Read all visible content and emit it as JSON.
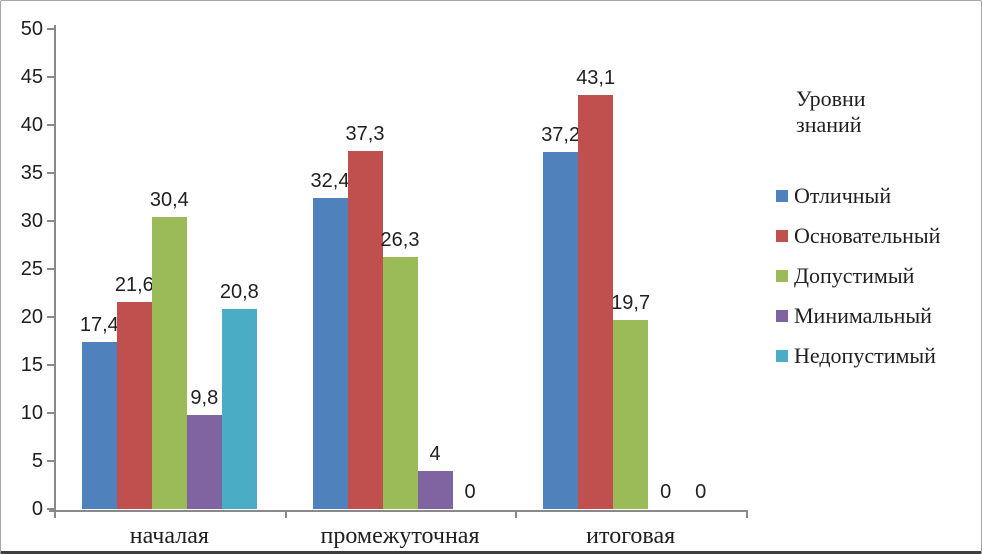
{
  "chart_data": {
    "type": "bar",
    "title": "",
    "legend_title": "Уровни знаний",
    "legend_position": "right",
    "grid": false,
    "ylim": [
      0,
      50
    ],
    "y_tick_step": 5,
    "y_ticks": [
      0,
      5,
      10,
      15,
      20,
      25,
      30,
      35,
      40,
      45,
      50
    ],
    "categories": [
      "началая",
      "промежуточная",
      "итоговая"
    ],
    "series": [
      {
        "name": "Отличный",
        "color": "#4F81BD",
        "values": [
          17.4,
          32.4,
          37.2
        ],
        "labels": [
          "17,4",
          "32,4",
          "37,2"
        ]
      },
      {
        "name": "Основательный",
        "color": "#C0504D",
        "values": [
          21.6,
          37.3,
          43.1
        ],
        "labels": [
          "21,6",
          "37,3",
          "43,1"
        ]
      },
      {
        "name": "Допустимый",
        "color": "#9BBB59",
        "values": [
          30.4,
          26.3,
          19.7
        ],
        "labels": [
          "30,4",
          "26,3",
          "19,7"
        ]
      },
      {
        "name": "Минимальный",
        "color": "#8064A2",
        "values": [
          9.8,
          4,
          0
        ],
        "labels": [
          "9,8",
          "4",
          "0"
        ]
      },
      {
        "name": "Недопустимый",
        "color": "#4BACC6",
        "values": [
          20.8,
          0,
          0
        ],
        "labels": [
          "20,8",
          "0",
          "0"
        ]
      }
    ],
    "axis_color": "#898989"
  }
}
